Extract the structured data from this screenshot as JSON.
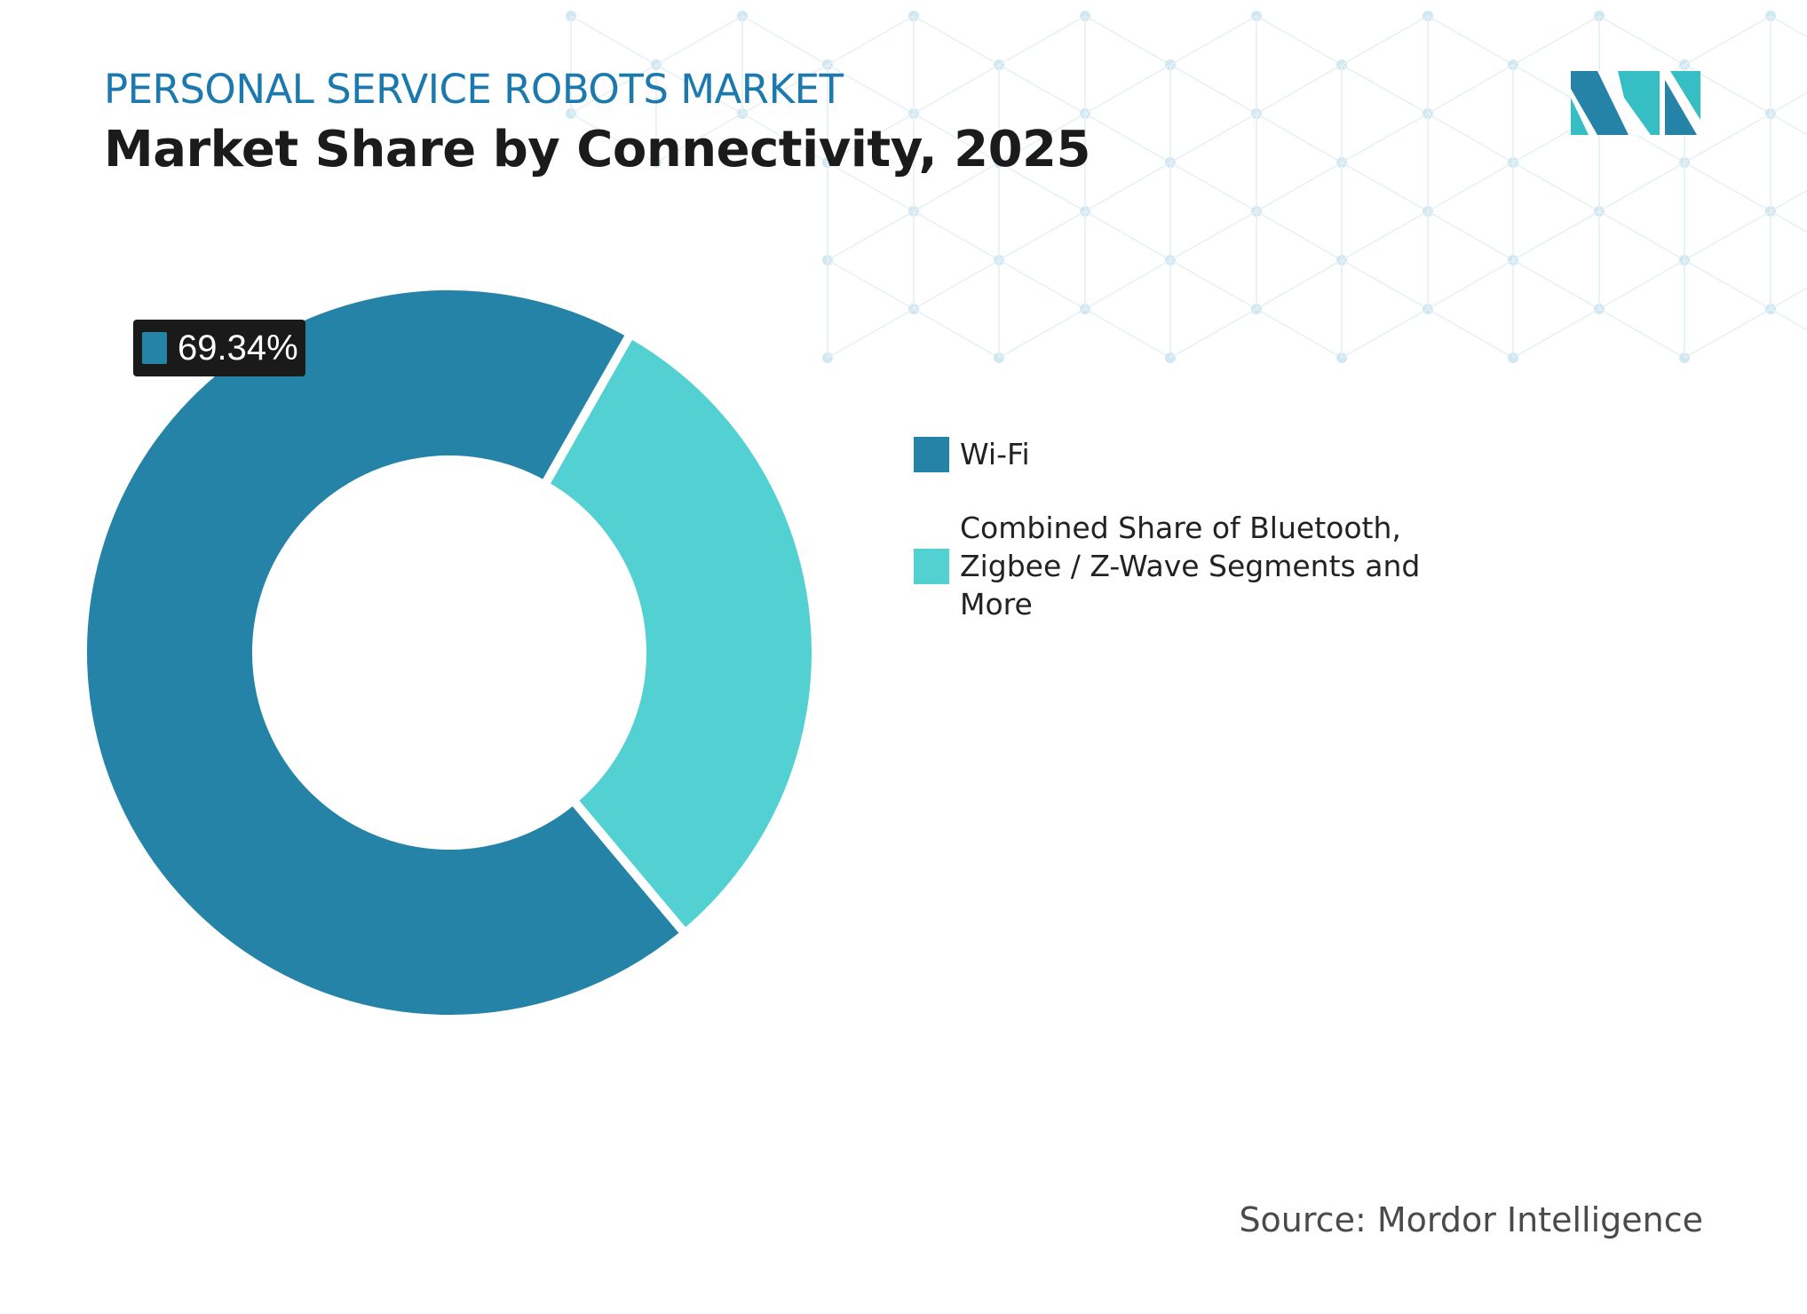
{
  "header": {
    "kicker": "PERSONAL SERVICE ROBOTS MARKET",
    "title": "Market Share by Connectivity, 2025"
  },
  "colors": {
    "wifi": "#2683a8",
    "other": "#52d0d2",
    "kicker": "#1c79ad"
  },
  "chart_data": {
    "type": "pie",
    "variant": "donut",
    "title": "Market Share by Connectivity, 2025",
    "series": [
      {
        "name": "Wi-Fi",
        "value": 69.34,
        "color": "#2683a8",
        "label": "69.34%"
      },
      {
        "name": "Combined Share of Bluetooth, Zigbee / Z-Wave Segments and More",
        "value": 30.66,
        "color": "#52d0d2"
      }
    ],
    "legend_position": "right"
  },
  "source": "Source: Mordor Intelligence",
  "logo": {
    "text": "Mordor Intelligence"
  }
}
